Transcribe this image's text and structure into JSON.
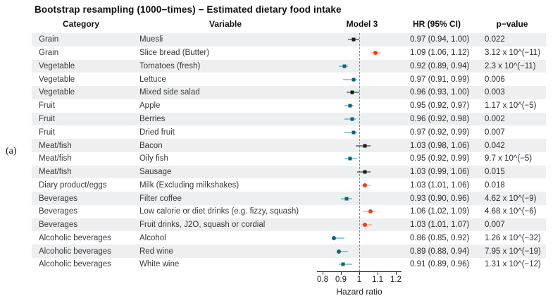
{
  "panel_label": "(a)",
  "title": "Bootstrap resampling (1000−times) − Estimated dietary food intake",
  "columns": {
    "category": "Category",
    "variable": "Variable",
    "model": "Model 3",
    "hr": "HR (95% CI)",
    "pvalue": "p−value"
  },
  "colors": {
    "black_marker": "#1a1a1a",
    "black_line": "#1a1a1a",
    "teal_marker": "#0e6478",
    "teal_line": "#2e97a8",
    "red_marker": "#e8431c",
    "red_line": "#f08a60",
    "stripe": "#edf0f0",
    "reference_line": "#8b8b8b"
  },
  "chart_data": {
    "type": "scatter",
    "subtype": "forest_plot",
    "title": "Bootstrap resampling (1000−times) − Estimated dietary food intake",
    "xlabel": "Hazard ratio",
    "xlim": [
      0.75,
      1.25
    ],
    "xticks": [
      0.8,
      0.9,
      1,
      1.1,
      1.2
    ],
    "xtick_labels": [
      "0.8",
      "0.9",
      "1",
      "1.1",
      "1.2"
    ],
    "reference_line": 1,
    "rows": [
      {
        "category": "Grain",
        "variable": "Muesli",
        "hr": 0.97,
        "ci_low": 0.94,
        "ci_high": 1.0,
        "hr_text": "0.97 (0.94, 1.00)",
        "p_text": "0.022",
        "color": "black",
        "shape": "square"
      },
      {
        "category": "Grain",
        "variable": "Slice bread (Butter)",
        "hr": 1.09,
        "ci_low": 1.06,
        "ci_high": 1.12,
        "hr_text": "1.09 (1.06, 1.12)",
        "p_text": "3.12 x 10^(−11)",
        "color": "red",
        "shape": "circle"
      },
      {
        "category": "Vegetable",
        "variable": "Tomatoes (fresh)",
        "hr": 0.92,
        "ci_low": 0.89,
        "ci_high": 0.94,
        "hr_text": "0.92 (0.89, 0.94)",
        "p_text": "2.3 x 10^(−11)",
        "color": "teal",
        "shape": "square"
      },
      {
        "category": "Vegetable",
        "variable": "Lettuce",
        "hr": 0.97,
        "ci_low": 0.91,
        "ci_high": 0.99,
        "hr_text": "0.97 (0.91, 0.99)",
        "p_text": "0.006",
        "color": "teal",
        "shape": "square"
      },
      {
        "category": "Vegetable",
        "variable": "Mixed side salad",
        "hr": 0.96,
        "ci_low": 0.93,
        "ci_high": 1.0,
        "hr_text": "0.96 (0.93, 1.00)",
        "p_text": "0.003",
        "color": "black",
        "shape": "square"
      },
      {
        "category": "Fruit",
        "variable": "Apple",
        "hr": 0.95,
        "ci_low": 0.92,
        "ci_high": 0.97,
        "hr_text": "0.95 (0.92, 0.97)",
        "p_text": "1.17 x 10^(−5)",
        "color": "teal",
        "shape": "square"
      },
      {
        "category": "Fruit",
        "variable": "Berries",
        "hr": 0.96,
        "ci_low": 0.92,
        "ci_high": 0.98,
        "hr_text": "0.96 (0.92, 0.98)",
        "p_text": "0.002",
        "color": "teal",
        "shape": "square"
      },
      {
        "category": "Fruit",
        "variable": "Dried fruit",
        "hr": 0.97,
        "ci_low": 0.92,
        "ci_high": 0.99,
        "hr_text": "0.97 (0.92, 0.99)",
        "p_text": "0.007",
        "color": "teal",
        "shape": "square"
      },
      {
        "category": "Meat/fish",
        "variable": "Bacon",
        "hr": 1.03,
        "ci_low": 0.98,
        "ci_high": 1.06,
        "hr_text": "1.03 (0.98, 1.06)",
        "p_text": "0.042",
        "color": "black",
        "shape": "square"
      },
      {
        "category": "Meat/fish",
        "variable": "Oily fish",
        "hr": 0.95,
        "ci_low": 0.92,
        "ci_high": 0.99,
        "hr_text": "0.95 (0.92, 0.99)",
        "p_text": "9.7 x 10^(−5)",
        "color": "teal",
        "shape": "square"
      },
      {
        "category": "Meat/fish",
        "variable": "Sausage",
        "hr": 1.03,
        "ci_low": 0.99,
        "ci_high": 1.06,
        "hr_text": "1.03 (0.99, 1.06)",
        "p_text": "0.015",
        "color": "black",
        "shape": "square"
      },
      {
        "category": "Diary product/eggs",
        "variable": "Milk (Excluding milkshakes)",
        "hr": 1.03,
        "ci_low": 1.01,
        "ci_high": 1.06,
        "hr_text": "1.03 (1.01, 1.06)",
        "p_text": "0.018",
        "color": "red",
        "shape": "circle"
      },
      {
        "category": "Beverages",
        "variable": "Filter coffee",
        "hr": 0.93,
        "ci_low": 0.9,
        "ci_high": 0.96,
        "hr_text": "0.93 (0.90, 0.96)",
        "p_text": "4.62 x 10^(−9)",
        "color": "teal",
        "shape": "square"
      },
      {
        "category": "Beverages",
        "variable": "Low calorie or diet drinks (e.g. fizzy, squash)",
        "hr": 1.06,
        "ci_low": 1.02,
        "ci_high": 1.09,
        "hr_text": "1.06 (1.02, 1.09)",
        "p_text": "4.68 x 10^(−6)",
        "color": "red",
        "shape": "circle"
      },
      {
        "category": "Beverages",
        "variable": "Fruit drinks, J2O, squash or cordial",
        "hr": 1.03,
        "ci_low": 1.01,
        "ci_high": 1.07,
        "hr_text": "1.03 (1.01, 1.07)",
        "p_text": "0.007",
        "color": "red",
        "shape": "circle"
      },
      {
        "category": "Alcoholic beverages",
        "variable": "Alcohol",
        "hr": 0.86,
        "ci_low": 0.85,
        "ci_high": 0.92,
        "hr_text": "0.86 (0.85, 0.92)",
        "p_text": "1.26 x 10^(−32)",
        "color": "teal",
        "shape": "circle"
      },
      {
        "category": "Alcoholic beverages",
        "variable": "Red wine",
        "hr": 0.89,
        "ci_low": 0.88,
        "ci_high": 0.94,
        "hr_text": "0.89 (0.88, 0.94)",
        "p_text": "7.95 x 10^(−19)",
        "color": "teal",
        "shape": "circle"
      },
      {
        "category": "Alcoholic beverages",
        "variable": "White wine",
        "hr": 0.91,
        "ci_low": 0.89,
        "ci_high": 0.96,
        "hr_text": "0.91 (0.89, 0.96)",
        "p_text": "1.31 x 10^(−12)",
        "color": "teal",
        "shape": "square"
      }
    ],
    "axis_label": "Hazard ratio",
    "legend_position": "none",
    "grid": false
  }
}
